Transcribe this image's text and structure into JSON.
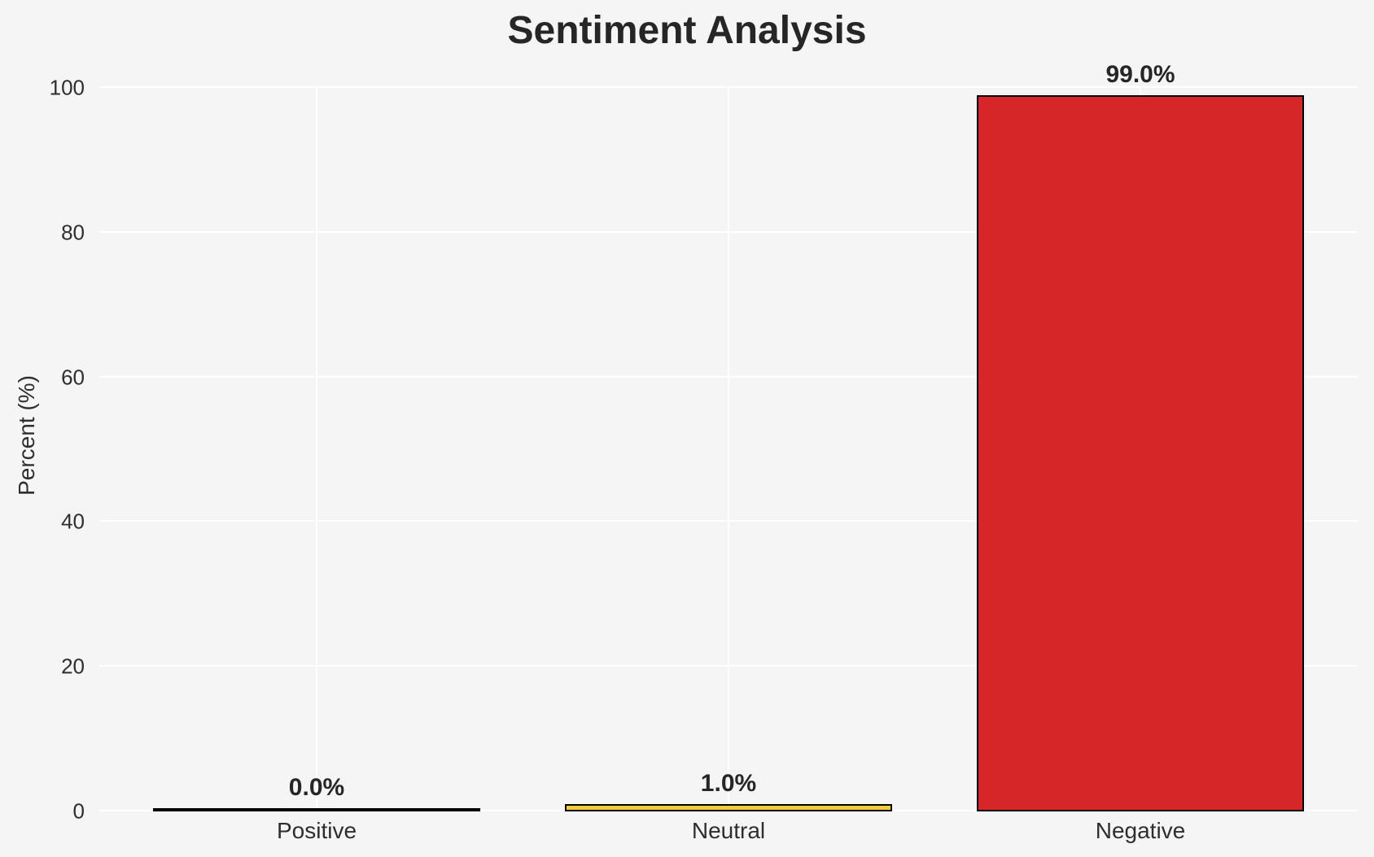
{
  "chart_data": {
    "type": "bar",
    "title": "Sentiment Analysis",
    "xlabel": "",
    "ylabel": "Percent (%)",
    "categories": [
      "Positive",
      "Neutral",
      "Negative"
    ],
    "values": [
      0.0,
      1.0,
      99.0
    ],
    "value_labels": [
      "0.0%",
      "1.0%",
      "99.0%"
    ],
    "yticks": [
      0,
      20,
      40,
      60,
      80,
      100
    ],
    "ylim": [
      0,
      100
    ],
    "grid": "both",
    "legend_position": "none",
    "colors": {
      "bar_fills": [
        "#f5f5f6",
        "#f1cd3c",
        "#d62728"
      ],
      "bar_edge": "#000000",
      "gridline": "#ffffff",
      "plot_background": "#f5f5f6",
      "figure_background": "#f5f5f6",
      "text": "#2b2b2b"
    }
  }
}
